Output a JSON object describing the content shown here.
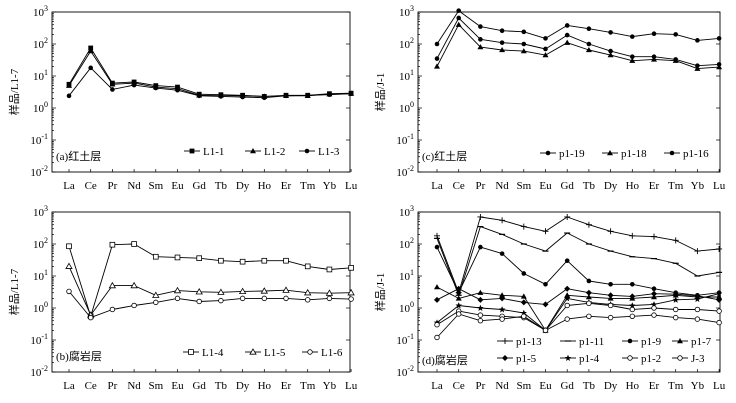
{
  "chart_data": [
    {
      "id": "a",
      "type": "line",
      "panel_label": "(a)红土层",
      "ylabel": "样品/L1-7",
      "yscale": "log",
      "ylim_exp": [
        -2,
        3
      ],
      "ytick_labels": [
        {
          "base": "10",
          "exp": "-2"
        },
        {
          "base": "10",
          "exp": "-1"
        },
        {
          "base": "10",
          "exp": "0"
        },
        {
          "base": "10",
          "exp": "1"
        },
        {
          "base": "10",
          "exp": "2"
        },
        {
          "base": "10",
          "exp": "3"
        }
      ],
      "categories": [
        "La",
        "Ce",
        "Pr",
        "Nd",
        "Sm",
        "Eu",
        "Gd",
        "Tb",
        "Dy",
        "Ho",
        "Er",
        "Tm",
        "Yb",
        "Lu"
      ],
      "legend_position": "bottom-right",
      "series": [
        {
          "name": "L1-1",
          "marker": "square",
          "values": [
            5.5,
            75,
            6.0,
            6.5,
            5.0,
            4.5,
            2.7,
            2.6,
            2.5,
            2.3,
            2.5,
            2.5,
            2.8,
            2.9
          ]
        },
        {
          "name": "L1-2",
          "marker": "triangle",
          "values": [
            5.0,
            60,
            5.5,
            6.0,
            4.5,
            4.0,
            2.5,
            2.5,
            2.4,
            2.3,
            2.4,
            2.4,
            2.7,
            2.8
          ]
        },
        {
          "name": "L1-3",
          "marker": "circle",
          "values": [
            2.4,
            18,
            3.8,
            5.2,
            4.2,
            3.6,
            2.4,
            2.3,
            2.2,
            2.1,
            2.4,
            2.5,
            2.6,
            2.8
          ]
        }
      ]
    },
    {
      "id": "b",
      "type": "line",
      "panel_label": "(b)腐岩层",
      "ylabel": "样品/L1-7",
      "yscale": "log",
      "ylim_exp": [
        -2,
        3
      ],
      "ytick_labels": [
        {
          "base": "10",
          "exp": "-2"
        },
        {
          "base": "10",
          "exp": "-1"
        },
        {
          "base": "10",
          "exp": "0"
        },
        {
          "base": "10",
          "exp": "1"
        },
        {
          "base": "10",
          "exp": "2"
        },
        {
          "base": "10",
          "exp": "3"
        }
      ],
      "categories": [
        "La",
        "Ce",
        "Pr",
        "Nd",
        "Sm",
        "Eu",
        "Gd",
        "Tb",
        "Dy",
        "Ho",
        "Er",
        "Tm",
        "Yb",
        "Lu"
      ],
      "legend_position": "bottom-right",
      "series": [
        {
          "name": "L1-4",
          "marker": "square-open",
          "values": [
            85,
            0.55,
            95,
            100,
            40,
            38,
            36,
            30,
            28,
            30,
            30,
            20,
            16,
            18
          ]
        },
        {
          "name": "L1-5",
          "marker": "triangle-open",
          "values": [
            20,
            0.6,
            5.0,
            5.0,
            2.5,
            3.5,
            3.2,
            3.1,
            3.3,
            3.4,
            3.6,
            3.0,
            2.9,
            3.0
          ]
        },
        {
          "name": "L1-6",
          "marker": "circle-open",
          "values": [
            3.3,
            0.5,
            0.9,
            1.2,
            1.5,
            2.0,
            1.6,
            1.7,
            2.0,
            2.0,
            2.0,
            1.8,
            2.0,
            1.9
          ]
        }
      ]
    },
    {
      "id": "c",
      "type": "line",
      "panel_label": "(c)红土层",
      "ylabel": "样品/J-1",
      "yscale": "log",
      "ylim_exp": [
        -2,
        3
      ],
      "ytick_labels": [
        {
          "base": "10",
          "exp": "-2"
        },
        {
          "base": "10",
          "exp": "-1"
        },
        {
          "base": "10",
          "exp": "0"
        },
        {
          "base": "10",
          "exp": "1"
        },
        {
          "base": "10",
          "exp": "2"
        },
        {
          "base": "10",
          "exp": "3"
        }
      ],
      "categories": [
        "La",
        "Ce",
        "Pr",
        "Nd",
        "Sm",
        "Eu",
        "Gd",
        "Tb",
        "Dy",
        "Ho",
        "Er",
        "Tm",
        "Yb",
        "Lu"
      ],
      "legend_position": "bottom-right",
      "series": [
        {
          "name": "p1-19",
          "marker": "circle",
          "values": [
            100,
            1100,
            350,
            260,
            240,
            150,
            380,
            300,
            230,
            170,
            210,
            200,
            130,
            150
          ]
        },
        {
          "name": "p1-18",
          "marker": "triangle",
          "values": [
            20,
            400,
            80,
            65,
            60,
            45,
            110,
            65,
            45,
            30,
            33,
            30,
            17,
            19
          ]
        },
        {
          "name": "p1-16",
          "marker": "circle",
          "values": [
            35,
            650,
            140,
            110,
            100,
            70,
            190,
            100,
            60,
            40,
            40,
            33,
            21,
            23
          ]
        }
      ]
    },
    {
      "id": "d",
      "type": "line",
      "panel_label": "(d)腐岩层",
      "ylabel": "样品/J-1",
      "yscale": "log",
      "ylim_exp": [
        -2,
        3
      ],
      "ytick_labels": [
        {
          "base": "10",
          "exp": "-2"
        },
        {
          "base": "10",
          "exp": "-1"
        },
        {
          "base": "10",
          "exp": "0"
        },
        {
          "base": "10",
          "exp": "1"
        },
        {
          "base": "10",
          "exp": "2"
        },
        {
          "base": "10",
          "exp": "3"
        }
      ],
      "categories": [
        "La",
        "Ce",
        "Pr",
        "Nd",
        "Sm",
        "Eu",
        "Gd",
        "Tb",
        "Dy",
        "Ho",
        "Er",
        "Tm",
        "Yb",
        "Lu"
      ],
      "legend_position": "bottom",
      "series": [
        {
          "name": "p1-13",
          "marker": "plus",
          "values": [
            180,
            3.0,
            700,
            550,
            350,
            250,
            700,
            400,
            250,
            180,
            170,
            130,
            60,
            70
          ]
        },
        {
          "name": "p1-11",
          "marker": "dash",
          "values": [
            150,
            2.5,
            350,
            200,
            100,
            60,
            220,
            100,
            60,
            40,
            35,
            25,
            10,
            13
          ]
        },
        {
          "name": "p1-9",
          "marker": "circle",
          "values": [
            80,
            3.0,
            80,
            50,
            12,
            5.5,
            30,
            7,
            5.5,
            5.5,
            4,
            3,
            2.5,
            3
          ]
        },
        {
          "name": "p1-7",
          "marker": "triangle",
          "values": [
            4.5,
            2.0,
            3.0,
            2.5,
            2.3,
            0.2,
            2.5,
            2.2,
            2.0,
            2.0,
            2.2,
            2.5,
            2.2,
            2.2
          ]
        },
        {
          "name": "p1-5",
          "marker": "diamond",
          "values": [
            1.8,
            4.0,
            1.8,
            2.0,
            1.5,
            1.3,
            4.0,
            3.0,
            2.5,
            2.3,
            2.8,
            2.7,
            2.4,
            1.8
          ]
        },
        {
          "name": "p1-4",
          "marker": "star",
          "values": [
            0.35,
            1.2,
            1.0,
            0.9,
            0.7,
            0.2,
            2.0,
            1.5,
            1.3,
            1.2,
            1.3,
            1.8,
            1.9,
            2.8
          ]
        },
        {
          "name": "p1-2",
          "marker": "circle-open",
          "values": [
            0.3,
            0.8,
            0.6,
            0.55,
            0.5,
            0.2,
            1.2,
            1.4,
            1.2,
            0.9,
            1.0,
            0.9,
            0.9,
            0.8
          ]
        },
        {
          "name": "J-3",
          "marker": "circle-open",
          "values": [
            0.12,
            0.65,
            0.4,
            0.45,
            0.55,
            0.2,
            0.45,
            0.55,
            0.5,
            0.55,
            0.6,
            0.5,
            0.45,
            0.35
          ]
        }
      ]
    }
  ]
}
